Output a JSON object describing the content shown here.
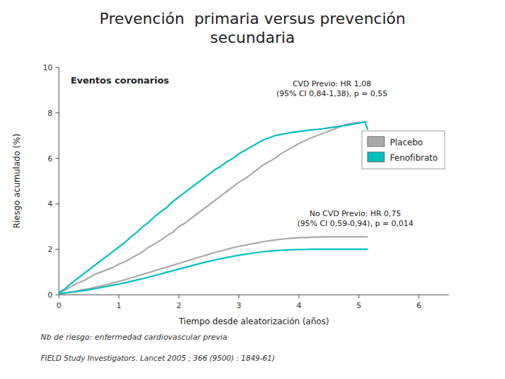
{
  "chart_data": {
    "type": "line",
    "title": "Prevención  primaria versus prevención\nsecundaria",
    "x_label": "Tiempo desde aleatorización (años)",
    "y_label": "Riesgo acumulado (%)",
    "annotations": [
      "Eventos coronarios",
      "CVD Previo: HR 1,08\n(95% CI 0,84-1,38), p = 0,55",
      "No CVD Previo: HR 0,75\n(95% CI 0,59-0,94), p = 0,014"
    ],
    "footnotes": [
      "Nb de riesgo: enfermedad cardiovascular previa",
      "FIELD Study Investigators. Lancet 2005 ; 366 (9500) : 1849-61)"
    ],
    "xlim": [
      0,
      6.5
    ],
    "ylim": [
      0,
      10
    ],
    "xticks": [
      0,
      1,
      2,
      3,
      4,
      5,
      6
    ],
    "yticks": [
      0,
      2,
      4,
      6,
      8,
      10
    ],
    "grid": false,
    "legend": "right",
    "x": [
      0,
      0.1,
      0.2,
      0.3,
      0.4,
      0.5,
      0.6,
      0.7,
      0.8,
      0.9,
      1.0,
      1.1,
      1.2,
      1.3,
      1.4,
      1.5,
      1.6,
      1.7,
      1.8,
      1.9,
      2.0,
      2.1,
      2.2,
      2.3,
      2.4,
      2.5,
      2.6,
      2.7,
      2.8,
      2.9,
      3.0,
      3.1,
      3.2,
      3.3,
      3.4,
      3.5,
      3.6,
      3.7,
      3.8,
      3.9,
      4.0,
      4.1,
      4.2,
      4.3,
      4.4,
      4.5,
      4.6,
      4.7,
      4.8,
      4.9,
      5.0,
      5.1,
      5.15
    ],
    "series": [
      {
        "name": "Placebo",
        "color": "#AAAAAA",
        "values": [
          0.1,
          0.2,
          0.35,
          0.5,
          0.6,
          0.75,
          0.9,
          1.0,
          1.1,
          1.2,
          1.35,
          1.45,
          1.6,
          1.75,
          1.9,
          2.1,
          2.25,
          2.4,
          2.6,
          2.75,
          3.0,
          3.15,
          3.35,
          3.55,
          3.75,
          3.95,
          4.15,
          4.35,
          4.55,
          4.75,
          4.95,
          5.1,
          5.3,
          5.5,
          5.7,
          5.85,
          6.0,
          6.2,
          6.35,
          6.5,
          6.65,
          6.78,
          6.9,
          7.0,
          7.1,
          7.2,
          7.3,
          7.4,
          7.5,
          7.55,
          7.58,
          7.6,
          7.6
        ]
      },
      {
        "name": "Fenofibrato",
        "color": "#00BFBF",
        "values": [
          0.1,
          0.25,
          0.5,
          0.7,
          0.9,
          1.1,
          1.3,
          1.5,
          1.7,
          1.9,
          2.1,
          2.3,
          2.55,
          2.75,
          3.0,
          3.2,
          3.45,
          3.65,
          3.85,
          4.1,
          4.3,
          4.5,
          4.7,
          4.9,
          5.1,
          5.3,
          5.5,
          5.65,
          5.85,
          6.0,
          6.2,
          6.35,
          6.5,
          6.65,
          6.8,
          6.9,
          7.0,
          7.05,
          7.1,
          7.15,
          7.18,
          7.22,
          7.25,
          7.27,
          7.3,
          7.34,
          7.38,
          7.42,
          7.46,
          7.5,
          7.55,
          7.6,
          7.25
        ]
      },
      {
        "name": "Placebo",
        "color": "#AAAAAA",
        "values": [
          0.05,
          0.08,
          0.12,
          0.17,
          0.22,
          0.27,
          0.33,
          0.39,
          0.45,
          0.52,
          0.59,
          0.66,
          0.74,
          0.82,
          0.9,
          0.98,
          1.06,
          1.14,
          1.22,
          1.3,
          1.38,
          1.46,
          1.54,
          1.62,
          1.7,
          1.78,
          1.86,
          1.93,
          2.0,
          2.07,
          2.13,
          2.18,
          2.23,
          2.28,
          2.33,
          2.37,
          2.41,
          2.44,
          2.47,
          2.49,
          2.51,
          2.52,
          2.53,
          2.54,
          2.54,
          2.55,
          2.55,
          2.55,
          2.55,
          2.55,
          2.55,
          2.55,
          2.55
        ]
      },
      {
        "name": "Fenofibrato",
        "color": "#00BFBF",
        "values": [
          0.05,
          0.08,
          0.11,
          0.14,
          0.18,
          0.22,
          0.27,
          0.32,
          0.37,
          0.42,
          0.47,
          0.53,
          0.59,
          0.65,
          0.71,
          0.78,
          0.85,
          0.92,
          0.99,
          1.06,
          1.13,
          1.2,
          1.27,
          1.34,
          1.41,
          1.47,
          1.53,
          1.59,
          1.64,
          1.69,
          1.74,
          1.78,
          1.82,
          1.86,
          1.89,
          1.92,
          1.94,
          1.96,
          1.97,
          1.98,
          1.99,
          1.99,
          2.0,
          2.0,
          2.0,
          2.0,
          2.0,
          2.0,
          2.0,
          2.0,
          2.0,
          2.0,
          2.0
        ]
      }
    ]
  }
}
